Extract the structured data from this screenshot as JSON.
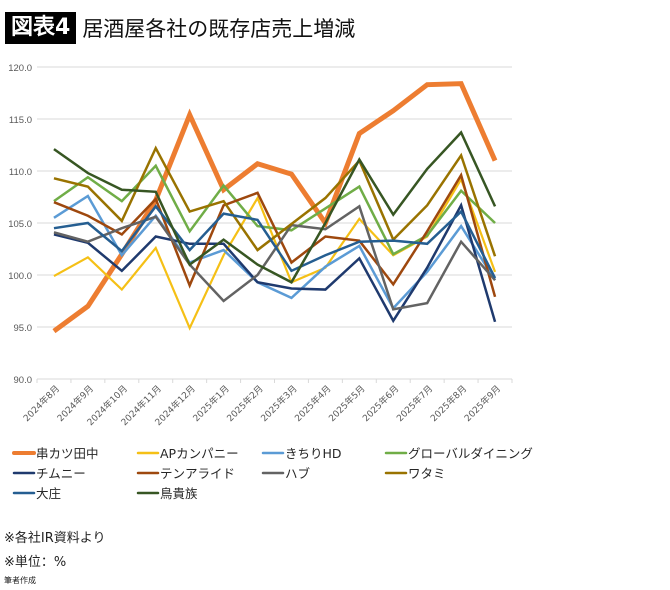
{
  "header": {
    "badge": "図表4",
    "title": "居酒屋各社の既存店売上増減"
  },
  "chart_data": {
    "type": "line",
    "title": "居酒屋各社の既存店売上増減",
    "ylim": [
      90,
      120
    ],
    "yticks": [
      "90.0",
      "95.0",
      "100.0",
      "105.0",
      "110.0",
      "115.0",
      "120.0"
    ],
    "grid": true,
    "legend": "bottom",
    "categories": [
      "2024年8月",
      "2024年9月",
      "2024年10月",
      "2024年11月",
      "2024年12月",
      "2025年1月",
      "2025年2月",
      "2025年3月",
      "2025年4月",
      "2025年5月",
      "2025年6月",
      "2025年7月",
      "2025年8月",
      "2025年9月"
    ],
    "series": [
      {
        "name": "串カツ田中",
        "color": "#ED7D31",
        "width": 5,
        "values": [
          94.6,
          97.0,
          102.0,
          107.2,
          115.4,
          108.2,
          110.7,
          109.7,
          105.0,
          113.6,
          115.8,
          118.3,
          118.4,
          111.0
        ]
      },
      {
        "name": "APカンパニー",
        "color": "#F5C016",
        "width": 2.2,
        "values": [
          99.9,
          101.7,
          98.6,
          102.6,
          94.9,
          101.9,
          107.4,
          99.3,
          100.7,
          105.4,
          101.9,
          103.7,
          109.2,
          100.3
        ]
      },
      {
        "name": "きちりHD",
        "color": "#5B9BD5",
        "width": 2.5,
        "values": [
          105.5,
          107.6,
          101.9,
          105.7,
          101.2,
          102.4,
          99.3,
          97.8,
          100.8,
          102.8,
          96.8,
          100.3,
          104.7,
          99.5
        ]
      },
      {
        "name": "グローバルダイニング",
        "color": "#70AD47",
        "width": 2.5,
        "values": [
          107.1,
          109.4,
          107.1,
          110.5,
          104.2,
          108.6,
          104.7,
          104.3,
          106.4,
          108.5,
          102.0,
          103.8,
          108.1,
          105.0
        ]
      },
      {
        "name": "チムニー",
        "color": "#1F3A6E",
        "width": 2.5,
        "values": [
          103.9,
          103.1,
          100.4,
          103.7,
          103.0,
          103.0,
          99.3,
          98.7,
          98.6,
          101.6,
          95.6,
          100.7,
          106.7,
          95.5
        ]
      },
      {
        "name": "テンアライド",
        "color": "#9E480E",
        "width": 2.5,
        "values": [
          107.0,
          105.7,
          103.9,
          107.3,
          99.0,
          106.7,
          107.9,
          101.2,
          103.7,
          103.3,
          99.1,
          104.2,
          109.6,
          97.9
        ]
      },
      {
        "name": "ハブ",
        "color": "#636363",
        "width": 2.5,
        "values": [
          104.1,
          103.2,
          104.5,
          105.6,
          101.0,
          97.5,
          100.0,
          104.8,
          104.4,
          106.6,
          96.7,
          97.3,
          103.2,
          99.5
        ]
      },
      {
        "name": "ワタミ",
        "color": "#997300",
        "width": 2.5,
        "values": [
          109.3,
          108.5,
          105.2,
          112.2,
          106.1,
          107.1,
          102.4,
          104.9,
          107.4,
          111.0,
          103.4,
          106.7,
          111.5,
          101.8
        ]
      },
      {
        "name": "大庄",
        "color": "#255E91",
        "width": 2.5,
        "values": [
          104.5,
          105.0,
          102.3,
          106.6,
          102.4,
          105.9,
          105.3,
          100.4,
          101.9,
          103.2,
          103.3,
          103.0,
          106.1,
          99.7
        ]
      },
      {
        "name": "鳥貴族",
        "color": "#375623",
        "width": 2.5,
        "values": [
          112.1,
          109.8,
          108.2,
          108.0,
          101.0,
          103.4,
          101.0,
          99.3,
          105.0,
          111.1,
          105.8,
          110.2,
          113.7,
          106.6
        ]
      }
    ]
  },
  "notes": {
    "source": "※各社IR資料より",
    "unit": "※単位：%",
    "author": "筆者作成"
  }
}
